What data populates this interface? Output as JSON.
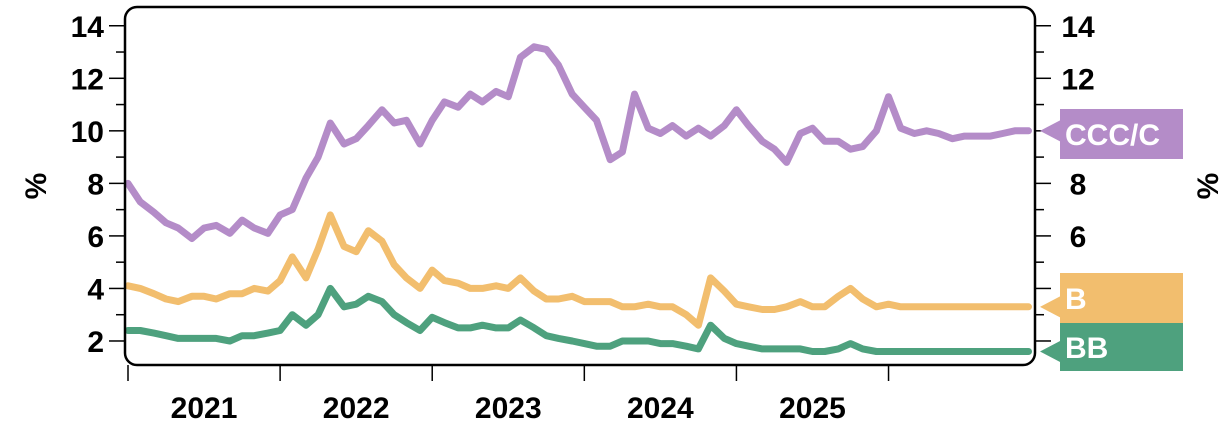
{
  "chart_data": {
    "type": "line",
    "title": "",
    "xlabel": "",
    "ylabel": "%",
    "ylabel_right": "%",
    "ylim": [
      1.2,
      14.6
    ],
    "xlim": [
      2020.0,
      2025.93
    ],
    "grid": false,
    "y_ticks_left": [
      2,
      4,
      6,
      8,
      10,
      12,
      14
    ],
    "y_ticks_right": [
      6,
      8,
      10,
      12,
      14
    ],
    "x_tick_positions": [
      2020.0,
      2021.0,
      2022.0,
      2023.0,
      2024.0,
      2025.0
    ],
    "x_labels": [
      {
        "label": "2021",
        "at": 2020.5
      },
      {
        "label": "2022",
        "at": 2021.5
      },
      {
        "label": "2023",
        "at": 2022.5
      },
      {
        "label": "2024",
        "at": 2023.5
      },
      {
        "label": "2025",
        "at": 2024.5
      }
    ],
    "series": [
      {
        "name": "CCC/C",
        "color": "#b48cc8",
        "x": [
          2020.0,
          2020.08,
          2020.17,
          2020.25,
          2020.33,
          2020.42,
          2020.5,
          2020.58,
          2020.67,
          2020.75,
          2020.83,
          2020.92,
          2021.0,
          2021.08,
          2021.17,
          2021.25,
          2021.33,
          2021.42,
          2021.5,
          2021.58,
          2021.67,
          2021.75,
          2021.83,
          2021.92,
          2022.0,
          2022.08,
          2022.17,
          2022.25,
          2022.33,
          2022.42,
          2022.5,
          2022.58,
          2022.67,
          2022.75,
          2022.83,
          2022.92,
          2023.0,
          2023.08,
          2023.17,
          2023.25,
          2023.33,
          2023.42,
          2023.5,
          2023.58,
          2023.67,
          2023.75,
          2023.83,
          2023.92,
          2024.0,
          2024.08,
          2024.17,
          2024.25,
          2024.33,
          2024.42,
          2024.5,
          2024.58,
          2024.67,
          2024.75,
          2024.83,
          2024.92,
          2025.0,
          2025.08,
          2025.17,
          2025.25,
          2025.33,
          2025.42,
          2025.5,
          2025.58,
          2025.67,
          2025.75,
          2025.83,
          2025.92
        ],
        "values": [
          8.0,
          7.3,
          6.9,
          6.5,
          6.3,
          5.9,
          6.3,
          6.4,
          6.1,
          6.6,
          6.3,
          6.1,
          6.8,
          7.0,
          8.2,
          9.0,
          10.3,
          9.5,
          9.7,
          10.2,
          10.8,
          10.3,
          10.4,
          9.5,
          10.4,
          11.1,
          10.9,
          11.4,
          11.1,
          11.5,
          11.3,
          12.8,
          13.2,
          13.1,
          12.5,
          11.4,
          10.9,
          10.4,
          8.9,
          9.2,
          11.4,
          10.1,
          9.9,
          10.2,
          9.8,
          10.1,
          9.8,
          10.2,
          10.8,
          10.2,
          9.6,
          9.3,
          8.8,
          9.9,
          10.1,
          9.6,
          9.6,
          9.3,
          9.4,
          10.0,
          11.3,
          10.1,
          9.9,
          10.0,
          9.9,
          9.7,
          9.8,
          9.8,
          9.8,
          9.9,
          10.0,
          10.0
        ]
      },
      {
        "name": "B",
        "color": "#f2be6e",
        "x": [
          2020.0,
          2020.08,
          2020.17,
          2020.25,
          2020.33,
          2020.42,
          2020.5,
          2020.58,
          2020.67,
          2020.75,
          2020.83,
          2020.92,
          2021.0,
          2021.08,
          2021.17,
          2021.25,
          2021.33,
          2021.42,
          2021.5,
          2021.58,
          2021.67,
          2021.75,
          2021.83,
          2021.92,
          2022.0,
          2022.08,
          2022.17,
          2022.25,
          2022.33,
          2022.42,
          2022.5,
          2022.58,
          2022.67,
          2022.75,
          2022.83,
          2022.92,
          2023.0,
          2023.08,
          2023.17,
          2023.25,
          2023.33,
          2023.42,
          2023.5,
          2023.58,
          2023.67,
          2023.75,
          2023.83,
          2023.92,
          2024.0,
          2024.08,
          2024.17,
          2024.25,
          2024.33,
          2024.42,
          2024.5,
          2024.58,
          2024.67,
          2024.75,
          2024.83,
          2024.92,
          2025.0,
          2025.08,
          2025.17,
          2025.25,
          2025.33,
          2025.42,
          2025.5,
          2025.58,
          2025.67,
          2025.75,
          2025.83,
          2025.92
        ],
        "values": [
          4.1,
          4.0,
          3.8,
          3.6,
          3.5,
          3.7,
          3.7,
          3.6,
          3.8,
          3.8,
          4.0,
          3.9,
          4.3,
          5.2,
          4.4,
          5.5,
          6.8,
          5.6,
          5.4,
          6.2,
          5.8,
          4.9,
          4.4,
          4.0,
          4.7,
          4.3,
          4.2,
          4.0,
          4.0,
          4.1,
          4.0,
          4.4,
          3.9,
          3.6,
          3.6,
          3.7,
          3.5,
          3.5,
          3.5,
          3.3,
          3.3,
          3.4,
          3.3,
          3.3,
          3.0,
          2.6,
          4.4,
          3.9,
          3.4,
          3.3,
          3.2,
          3.2,
          3.3,
          3.5,
          3.3,
          3.3,
          3.7,
          4.0,
          3.6,
          3.3,
          3.4,
          3.3,
          3.3,
          3.3,
          3.3,
          3.3,
          3.3,
          3.3,
          3.3,
          3.3,
          3.3,
          3.3
        ]
      },
      {
        "name": "BB",
        "color": "#4ea17e",
        "x": [
          2020.0,
          2020.08,
          2020.17,
          2020.25,
          2020.33,
          2020.42,
          2020.5,
          2020.58,
          2020.67,
          2020.75,
          2020.83,
          2020.92,
          2021.0,
          2021.08,
          2021.17,
          2021.25,
          2021.33,
          2021.42,
          2021.5,
          2021.58,
          2021.67,
          2021.75,
          2021.83,
          2021.92,
          2022.0,
          2022.08,
          2022.17,
          2022.25,
          2022.33,
          2022.42,
          2022.5,
          2022.58,
          2022.67,
          2022.75,
          2022.83,
          2022.92,
          2023.0,
          2023.08,
          2023.17,
          2023.25,
          2023.33,
          2023.42,
          2023.5,
          2023.58,
          2023.67,
          2023.75,
          2023.83,
          2023.92,
          2024.0,
          2024.08,
          2024.17,
          2024.25,
          2024.33,
          2024.42,
          2024.5,
          2024.58,
          2024.67,
          2024.75,
          2024.83,
          2024.92,
          2025.0,
          2025.08,
          2025.17,
          2025.25,
          2025.33,
          2025.42,
          2025.5,
          2025.58,
          2025.67,
          2025.75,
          2025.83,
          2025.92
        ],
        "values": [
          2.4,
          2.4,
          2.3,
          2.2,
          2.1,
          2.1,
          2.1,
          2.1,
          2.0,
          2.2,
          2.2,
          2.3,
          2.4,
          3.0,
          2.6,
          3.0,
          4.0,
          3.3,
          3.4,
          3.7,
          3.5,
          3.0,
          2.7,
          2.4,
          2.9,
          2.7,
          2.5,
          2.5,
          2.6,
          2.5,
          2.5,
          2.8,
          2.5,
          2.2,
          2.1,
          2.0,
          1.9,
          1.8,
          1.8,
          2.0,
          2.0,
          2.0,
          1.9,
          1.9,
          1.8,
          1.7,
          2.6,
          2.1,
          1.9,
          1.8,
          1.7,
          1.7,
          1.7,
          1.7,
          1.6,
          1.6,
          1.7,
          1.9,
          1.7,
          1.6,
          1.6,
          1.6,
          1.6,
          1.6,
          1.6,
          1.6,
          1.6,
          1.6,
          1.6,
          1.6,
          1.6,
          1.6
        ]
      }
    ]
  }
}
